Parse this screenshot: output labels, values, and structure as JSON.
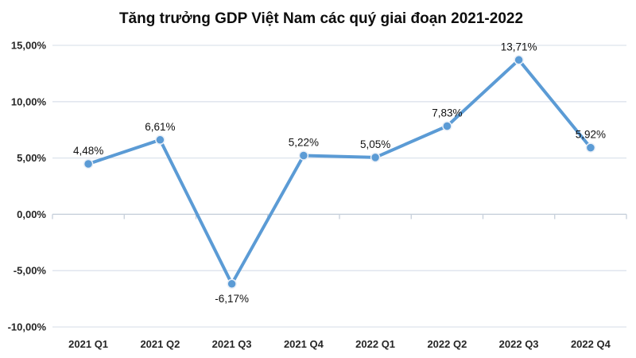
{
  "chart_data": {
    "type": "line",
    "title": "Tăng trưởng GDP Việt Nam các quý giai đoạn 2021-2022",
    "categories": [
      "2021 Q1",
      "2021 Q2",
      "2021 Q3",
      "2021 Q4",
      "2022 Q1",
      "2022 Q2",
      "2022 Q3",
      "2022 Q4"
    ],
    "series": [
      {
        "name": "GDP growth",
        "values": [
          4.48,
          6.61,
          -6.17,
          5.22,
          5.05,
          7.83,
          13.71,
          5.92
        ],
        "point_labels": [
          "4,48%",
          "6,61%",
          "-6,17%",
          "5,22%",
          "5,05%",
          "7,83%",
          "13,71%",
          "5,92%"
        ],
        "label_positions": [
          "above",
          "above",
          "below",
          "above",
          "above",
          "above",
          "above",
          "above"
        ]
      }
    ],
    "ylim": [
      -10,
      15
    ],
    "ytick_step": 5,
    "ytick_labels": [
      "15,00%",
      "10,00%",
      "5,00%",
      "0,00%",
      "-5,00%",
      "-10,00%"
    ],
    "ytick_values": [
      15,
      10,
      5,
      0,
      -5,
      -10
    ],
    "grid": true,
    "legend": "none",
    "marker": "circle",
    "colors": {
      "line": "#5B9BD5",
      "marker_fill": "#5B9BD5",
      "marker_halo": "#e9eff7",
      "gridline": "#dde3ec",
      "axis_line": "#c6cfda",
      "title": "#0d0d0d",
      "tick_label": "#262626",
      "data_label": "#111111",
      "background": "#ffffff"
    }
  }
}
